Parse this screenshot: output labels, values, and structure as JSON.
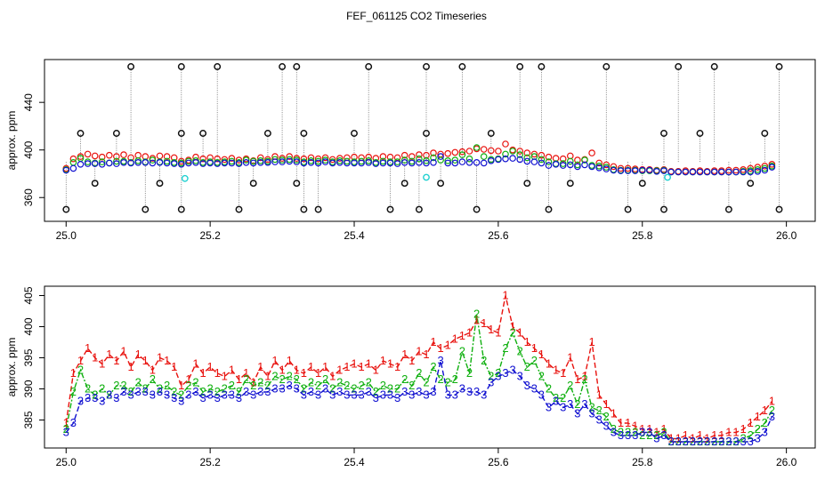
{
  "figure_title": "FEF_061125  CO2 Timeseries",
  "colors": {
    "series1": "#e8120e",
    "series2": "#10b010",
    "series3": "#1010d0",
    "spikes": "#111111",
    "cyan": "#20d0d0",
    "frame": "#000000"
  },
  "chart_data": [
    {
      "type": "scatter",
      "title": "",
      "ylabel": "approx. ppm",
      "xlabel": "",
      "xlim": [
        24.97,
        26.04
      ],
      "ylim": [
        340,
        476
      ],
      "x_ticks": [
        "25.0",
        "25.2",
        "25.4",
        "25.6",
        "25.8",
        "26.0"
      ],
      "y_ticks": [
        "360",
        "400",
        "440"
      ],
      "spike_levels_ppm": [
        470,
        414,
        372,
        350
      ],
      "spike_x": [
        25.0,
        25.02,
        25.04,
        25.07,
        25.09,
        25.11,
        25.13,
        25.16,
        25.16,
        25.16,
        25.19,
        25.21,
        25.24,
        25.26,
        25.28,
        25.3,
        25.32,
        25.32,
        25.33,
        25.33,
        25.35,
        25.4,
        25.42,
        25.45,
        25.47,
        25.49,
        25.5,
        25.5,
        25.52,
        25.55,
        25.57,
        25.59,
        25.63,
        25.64,
        25.66,
        25.67,
        25.7,
        25.75,
        25.78,
        25.8,
        25.83,
        25.83,
        25.85,
        25.88,
        25.9,
        25.92,
        25.95,
        25.97,
        25.99,
        25.99
      ],
      "spike_y": [
        350,
        414,
        372,
        414,
        470,
        350,
        372,
        350,
        414,
        470,
        414,
        470,
        350,
        372,
        414,
        470,
        470,
        372,
        350,
        414,
        350,
        414,
        470,
        350,
        372,
        350,
        414,
        470,
        372,
        470,
        350,
        414,
        470,
        372,
        470,
        350,
        372,
        470,
        350,
        372,
        350,
        414,
        470,
        414,
        470,
        350,
        372,
        414,
        470,
        350
      ],
      "series_note": "Red, green and blue circle series follow the same values as panel 2 (approx. 385-400 ppm)"
    },
    {
      "type": "line",
      "title": "",
      "ylabel": "approx. ppm",
      "xlabel": "",
      "xlim": [
        24.97,
        26.04
      ],
      "ylim": [
        380.5,
        406.5
      ],
      "x_ticks": [
        "25.0",
        "25.2",
        "25.4",
        "25.6",
        "25.8",
        "26.0"
      ],
      "y_ticks": [
        "385",
        "390",
        "395",
        "400",
        "405"
      ],
      "x": [
        25.0,
        25.01,
        25.02,
        25.03,
        25.04,
        25.05,
        25.06,
        25.07,
        25.08,
        25.09,
        25.1,
        25.11,
        25.12,
        25.13,
        25.14,
        25.15,
        25.16,
        25.17,
        25.18,
        25.19,
        25.2,
        25.21,
        25.22,
        25.23,
        25.24,
        25.25,
        25.26,
        25.27,
        25.28,
        25.29,
        25.3,
        25.31,
        25.32,
        25.33,
        25.34,
        25.35,
        25.36,
        25.37,
        25.38,
        25.39,
        25.4,
        25.41,
        25.42,
        25.43,
        25.44,
        25.45,
        25.46,
        25.47,
        25.48,
        25.49,
        25.5,
        25.51,
        25.52,
        25.53,
        25.54,
        25.55,
        25.56,
        25.57,
        25.58,
        25.59,
        25.6,
        25.61,
        25.62,
        25.63,
        25.64,
        25.65,
        25.66,
        25.67,
        25.68,
        25.69,
        25.7,
        25.71,
        25.72,
        25.73,
        25.74,
        25.75,
        25.76,
        25.77,
        25.78,
        25.79,
        25.8,
        25.81,
        25.82,
        25.83,
        25.84,
        25.85,
        25.86,
        25.87,
        25.88,
        25.89,
        25.9,
        25.91,
        25.92,
        25.93,
        25.94,
        25.95,
        25.96,
        25.97,
        25.98
      ],
      "series": [
        {
          "name": "1",
          "marker": "1",
          "values": [
            384.5,
            392.5,
            394.5,
            396.5,
            395.0,
            394.0,
            395.5,
            394.5,
            396.0,
            393.5,
            395.5,
            394.5,
            393.0,
            395.0,
            394.5,
            393.5,
            390.5,
            391.5,
            394.0,
            392.5,
            393.5,
            392.5,
            392.0,
            393.0,
            391.5,
            392.5,
            391.0,
            393.5,
            392.0,
            394.5,
            393.0,
            394.5,
            393.0,
            392.5,
            393.5,
            392.5,
            393.5,
            392.0,
            393.0,
            393.5,
            394.0,
            393.5,
            394.0,
            393.0,
            394.5,
            394.0,
            393.5,
            395.5,
            394.5,
            396.0,
            395.5,
            397.5,
            396.5,
            397.0,
            398.0,
            398.5,
            399.0,
            401.0,
            400.5,
            399.5,
            399.0,
            405.0,
            400.0,
            399.0,
            397.5,
            396.5,
            395.5,
            394.0,
            393.0,
            392.5,
            395.0,
            391.5,
            392.0,
            397.5,
            389.0,
            387.5,
            386.0,
            384.5,
            384.5,
            384.0,
            383.5,
            383.5,
            383.0,
            383.5,
            382.0,
            382.0,
            382.5,
            382.0,
            382.5,
            382.0,
            382.5,
            382.5,
            383.0,
            383.0,
            383.5,
            384.5,
            385.5,
            386.5,
            388.0
          ]
        },
        {
          "name": "2",
          "marker": "2",
          "values": [
            383.5,
            389.5,
            393.0,
            390.0,
            389.0,
            390.0,
            389.0,
            390.5,
            390.5,
            389.5,
            391.0,
            390.0,
            391.5,
            390.0,
            390.5,
            389.5,
            389.0,
            390.5,
            391.0,
            389.5,
            390.0,
            389.5,
            390.0,
            390.5,
            389.5,
            391.5,
            390.5,
            391.0,
            390.5,
            392.0,
            391.5,
            392.0,
            391.5,
            390.0,
            391.0,
            390.5,
            391.5,
            390.0,
            391.0,
            390.5,
            390.0,
            390.5,
            391.0,
            389.5,
            390.5,
            390.0,
            390.0,
            391.5,
            390.5,
            392.5,
            391.0,
            393.5,
            391.5,
            391.0,
            391.5,
            396.0,
            392.5,
            402.0,
            394.5,
            392.0,
            392.5,
            396.5,
            399.0,
            396.0,
            393.5,
            394.5,
            392.0,
            390.0,
            388.5,
            388.5,
            390.5,
            387.5,
            391.5,
            387.0,
            386.5,
            385.5,
            383.5,
            383.0,
            383.0,
            383.0,
            382.5,
            382.5,
            382.5,
            383.0,
            381.5,
            381.5,
            381.5,
            381.5,
            381.5,
            381.5,
            381.5,
            381.5,
            381.5,
            381.5,
            382.0,
            382.5,
            383.5,
            384.5,
            386.5
          ]
        },
        {
          "name": "3",
          "marker": "3",
          "values": [
            383.0,
            384.5,
            388.0,
            388.5,
            388.5,
            388.0,
            389.0,
            388.5,
            389.5,
            389.0,
            389.5,
            389.5,
            389.0,
            389.5,
            389.0,
            388.5,
            388.0,
            389.0,
            389.5,
            388.5,
            389.0,
            388.5,
            389.0,
            389.0,
            388.5,
            389.5,
            389.0,
            389.5,
            389.5,
            390.0,
            390.0,
            390.5,
            390.0,
            389.0,
            389.5,
            389.0,
            390.0,
            389.0,
            389.5,
            389.0,
            389.0,
            389.0,
            389.5,
            388.5,
            389.0,
            389.0,
            388.5,
            389.5,
            389.0,
            389.5,
            389.0,
            389.5,
            394.5,
            389.0,
            389.0,
            390.0,
            389.5,
            389.5,
            389.0,
            391.0,
            392.0,
            392.5,
            393.0,
            392.0,
            390.5,
            390.0,
            389.0,
            387.0,
            388.0,
            387.0,
            387.5,
            386.0,
            387.5,
            386.0,
            385.0,
            384.0,
            383.0,
            382.5,
            382.5,
            382.5,
            383.0,
            383.0,
            382.0,
            382.5,
            381.5,
            381.5,
            381.5,
            381.5,
            381.5,
            381.5,
            381.5,
            381.5,
            381.5,
            381.5,
            381.5,
            381.5,
            382.0,
            383.0,
            385.5
          ]
        }
      ]
    }
  ]
}
